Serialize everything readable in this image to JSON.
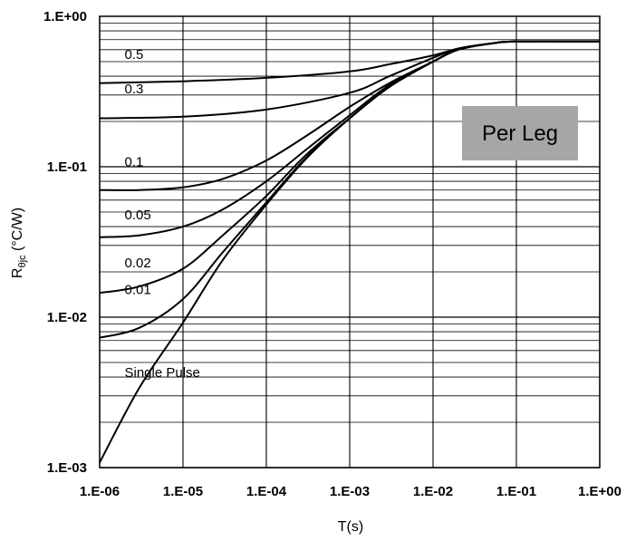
{
  "chart_data": {
    "type": "line",
    "title": "",
    "xlabel": "T(s)",
    "ylabel_main": "R",
    "ylabel_sub": "θjc",
    "ylabel_unit": " (°C/W)",
    "xscale": "log",
    "yscale": "log",
    "xlim": [
      1e-06,
      1
    ],
    "ylim": [
      0.001,
      1
    ],
    "grid": true,
    "x_ticks": [
      {
        "value": 1e-06,
        "label": "1.E-06"
      },
      {
        "value": 1e-05,
        "label": "1.E-05"
      },
      {
        "value": 0.0001,
        "label": "1.E-04"
      },
      {
        "value": 0.001,
        "label": "1.E-03"
      },
      {
        "value": 0.01,
        "label": "1.E-02"
      },
      {
        "value": 0.1,
        "label": "1.E-01"
      },
      {
        "value": 1,
        "label": "1.E+00"
      }
    ],
    "y_ticks": [
      {
        "value": 0.001,
        "label": "1.E-03"
      },
      {
        "value": 0.01,
        "label": "1.E-02"
      },
      {
        "value": 0.1,
        "label": "1.E-01"
      },
      {
        "value": 1,
        "label": "1.E+00"
      }
    ],
    "annotation": "Per Leg",
    "series": [
      {
        "name": "0.5",
        "label_at": [
          1.8e-06,
          0.56
        ],
        "points": [
          [
            1e-06,
            0.36
          ],
          [
            1e-05,
            0.37
          ],
          [
            0.0001,
            0.39
          ],
          [
            0.001,
            0.43
          ],
          [
            0.003,
            0.48
          ],
          [
            0.01,
            0.55
          ],
          [
            0.02,
            0.61
          ],
          [
            0.05,
            0.66
          ],
          [
            0.1,
            0.68
          ],
          [
            1,
            0.68
          ]
        ]
      },
      {
        "name": "0.3",
        "label_at": [
          1.8e-06,
          0.33
        ],
        "points": [
          [
            1e-06,
            0.21
          ],
          [
            1e-05,
            0.215
          ],
          [
            0.0001,
            0.24
          ],
          [
            0.001,
            0.31
          ],
          [
            0.003,
            0.4
          ],
          [
            0.01,
            0.53
          ],
          [
            0.02,
            0.61
          ],
          [
            0.05,
            0.66
          ],
          [
            0.1,
            0.68
          ],
          [
            1,
            0.68
          ]
        ]
      },
      {
        "name": "0.1",
        "label_at": [
          1.8e-06,
          0.108
        ],
        "points": [
          [
            1e-06,
            0.07
          ],
          [
            3e-06,
            0.07
          ],
          [
            1e-05,
            0.073
          ],
          [
            3e-05,
            0.083
          ],
          [
            0.0001,
            0.11
          ],
          [
            0.0003,
            0.16
          ],
          [
            0.001,
            0.25
          ],
          [
            0.003,
            0.36
          ],
          [
            0.01,
            0.5
          ],
          [
            0.02,
            0.6
          ],
          [
            0.05,
            0.66
          ],
          [
            0.1,
            0.68
          ],
          [
            1,
            0.68
          ]
        ]
      },
      {
        "name": "0.05",
        "label_at": [
          1.8e-06,
          0.048
        ],
        "points": [
          [
            1e-06,
            0.034
          ],
          [
            3e-06,
            0.035
          ],
          [
            1e-05,
            0.04
          ],
          [
            3e-05,
            0.052
          ],
          [
            0.0001,
            0.08
          ],
          [
            0.0003,
            0.13
          ],
          [
            0.001,
            0.22
          ],
          [
            0.003,
            0.35
          ],
          [
            0.01,
            0.5
          ],
          [
            0.02,
            0.6
          ],
          [
            0.05,
            0.66
          ],
          [
            0.1,
            0.68
          ],
          [
            1,
            0.68
          ]
        ]
      },
      {
        "name": "0.02",
        "label_at": [
          1.8e-06,
          0.023
        ],
        "points": [
          [
            1e-06,
            0.0145
          ],
          [
            3e-06,
            0.016
          ],
          [
            1e-05,
            0.021
          ],
          [
            3e-05,
            0.035
          ],
          [
            0.0001,
            0.064
          ],
          [
            0.0003,
            0.12
          ],
          [
            0.001,
            0.21
          ],
          [
            0.003,
            0.34
          ],
          [
            0.01,
            0.5
          ],
          [
            0.02,
            0.6
          ],
          [
            0.05,
            0.66
          ],
          [
            0.1,
            0.68
          ],
          [
            1,
            0.68
          ]
        ]
      },
      {
        "name": "0.01",
        "label_at": [
          1.8e-06,
          0.0153
        ],
        "points": [
          [
            1e-06,
            0.0073
          ],
          [
            3e-06,
            0.0085
          ],
          [
            1e-05,
            0.0132
          ],
          [
            3e-05,
            0.027
          ],
          [
            0.0001,
            0.058
          ],
          [
            0.0003,
            0.115
          ],
          [
            0.001,
            0.21
          ],
          [
            0.003,
            0.34
          ],
          [
            0.01,
            0.5
          ],
          [
            0.02,
            0.6
          ],
          [
            0.05,
            0.66
          ],
          [
            0.1,
            0.68
          ],
          [
            1,
            0.68
          ]
        ]
      },
      {
        "name": "Single Pulse",
        "label_at": [
          1.8e-06,
          0.0043
        ],
        "points": [
          [
            1e-06,
            0.00108
          ],
          [
            3e-06,
            0.0034
          ],
          [
            1e-05,
            0.0092
          ],
          [
            3e-05,
            0.024
          ],
          [
            0.0001,
            0.056
          ],
          [
            0.0003,
            0.113
          ],
          [
            0.001,
            0.21
          ],
          [
            0.003,
            0.34
          ],
          [
            0.01,
            0.5
          ],
          [
            0.02,
            0.6
          ],
          [
            0.05,
            0.66
          ],
          [
            0.1,
            0.68
          ],
          [
            1,
            0.68
          ]
        ]
      }
    ]
  }
}
